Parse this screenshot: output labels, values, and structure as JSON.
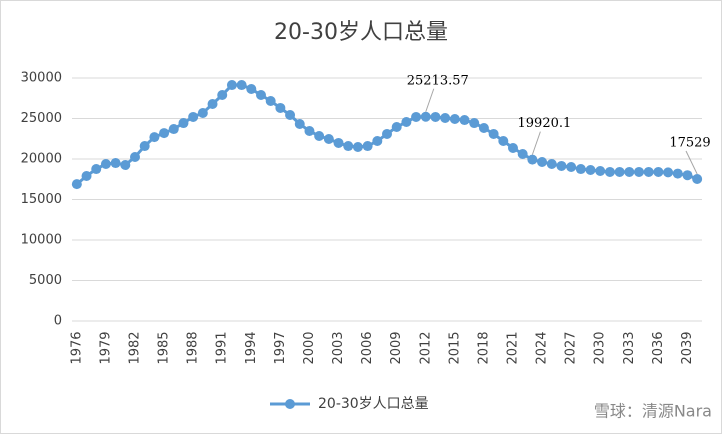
{
  "chart_data": {
    "type": "line",
    "title": "20-30岁人口总量",
    "categories": [
      "1976",
      null,
      null,
      "1979",
      null,
      null,
      "1982",
      null,
      null,
      "1985",
      null,
      null,
      "1988",
      null,
      null,
      "1991",
      null,
      null,
      "1994",
      null,
      null,
      "1997",
      null,
      null,
      "2000",
      null,
      null,
      "2003",
      null,
      null,
      "2006",
      null,
      null,
      "2009",
      null,
      null,
      "2012",
      null,
      null,
      "2015",
      null,
      null,
      "2018",
      null,
      null,
      "2021",
      null,
      null,
      "2024",
      null,
      null,
      "2027",
      null,
      null,
      "2030",
      null,
      null,
      "2033",
      null,
      null,
      "2036",
      null,
      null,
      "2039",
      null
    ],
    "series": [
      {
        "name": "20-30岁人口总量",
        "color": "#5b9bd5",
        "values": [
          16900,
          17900,
          18760,
          19380,
          19500,
          19260,
          20250,
          21600,
          22700,
          23200,
          23700,
          24440,
          25190,
          25680,
          26790,
          27900,
          29130,
          29130,
          28640,
          27900,
          27160,
          26300,
          25430,
          24320,
          23460,
          22840,
          22470,
          21980,
          21600,
          21480,
          21600,
          22220,
          23090,
          23950,
          24570,
          25190,
          25213.57,
          25190,
          25060,
          24940,
          24810,
          24440,
          23830,
          23090,
          22220,
          21360,
          20620,
          19920.1,
          19630,
          19380,
          19140,
          19010,
          18760,
          18640,
          18520,
          18400,
          18400,
          18400,
          18400,
          18400,
          18400,
          18350,
          18200,
          18000,
          17529
        ],
        "value_labels": [
          null,
          null,
          null,
          null,
          null,
          null,
          null,
          null,
          null,
          null,
          null,
          null,
          null,
          null,
          null,
          null,
          null,
          null,
          null,
          null,
          null,
          null,
          null,
          null,
          null,
          null,
          null,
          null,
          null,
          null,
          null,
          null,
          null,
          null,
          null,
          null,
          "25213.57",
          null,
          null,
          null,
          null,
          null,
          null,
          null,
          null,
          null,
          null,
          "19920.1",
          null,
          null,
          null,
          null,
          null,
          null,
          null,
          null,
          null,
          null,
          null,
          null,
          null,
          null,
          null,
          null,
          "17529"
        ]
      }
    ],
    "ylim": [
      0,
      30000
    ],
    "yticks": [
      0,
      5000,
      10000,
      15000,
      20000,
      25000,
      30000
    ],
    "grid": true,
    "legend": "bottom",
    "watermark": "雪球：清源Nara"
  }
}
